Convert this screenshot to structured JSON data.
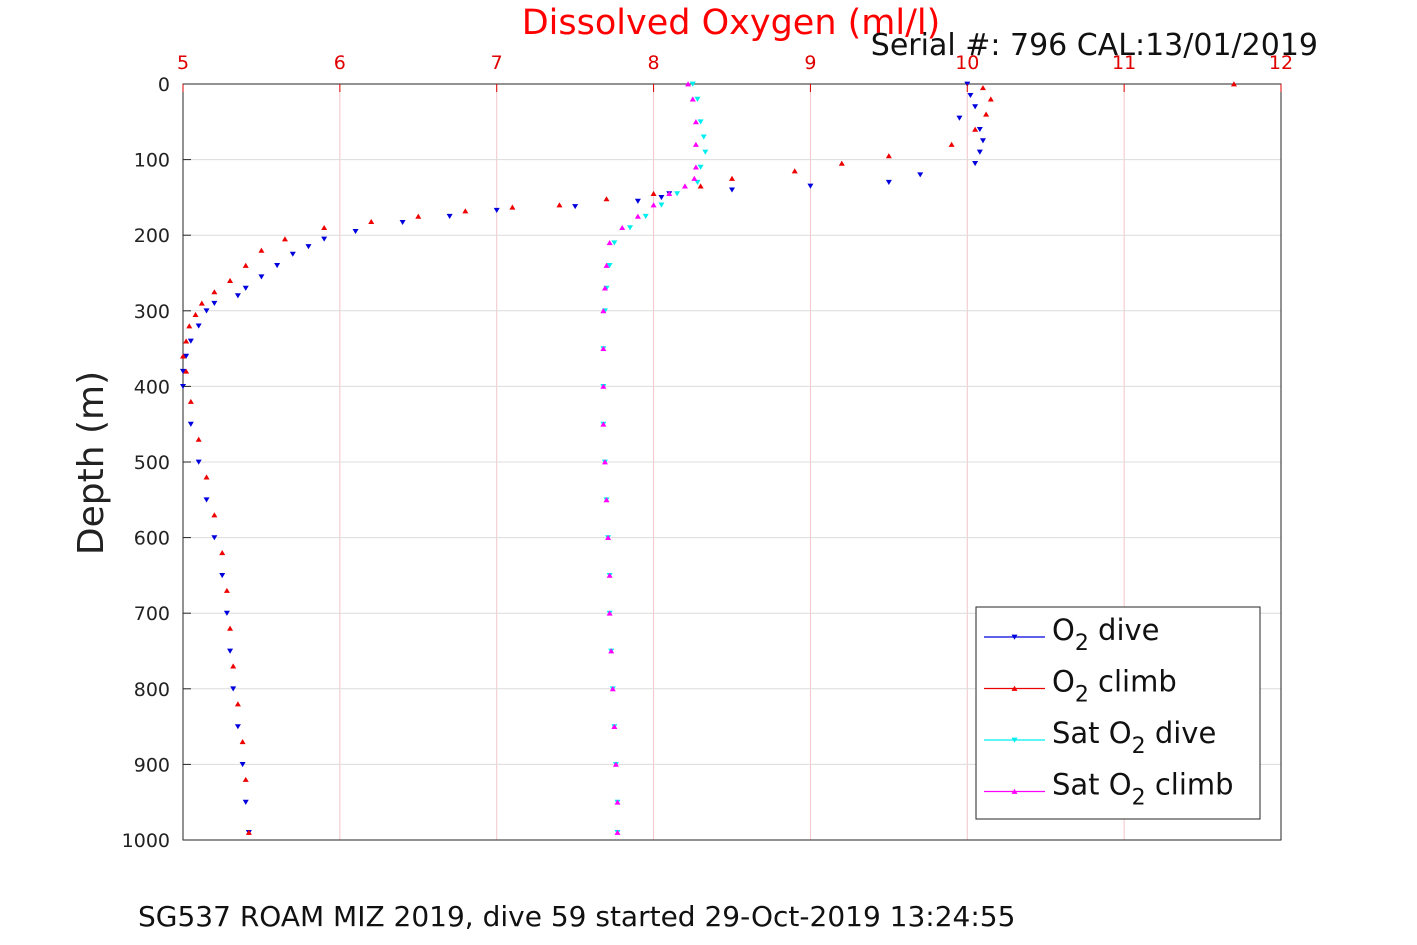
{
  "chart_data": {
    "type": "scatter",
    "title": "Dissolved Oxygen (ml/l)",
    "subtitle": "Serial #: 796  CAL:13/01/2019",
    "ylabel": "Depth (m)",
    "caption": "SG537 ROAM MIZ 2019, dive 59 started 29-Oct-2019 13:24:55",
    "xlim": [
      5,
      12
    ],
    "ylim": [
      0,
      1000
    ],
    "y_reversed": true,
    "x_axis_position": "top",
    "x_ticks": [
      "5",
      "6",
      "7",
      "8",
      "9",
      "10",
      "11",
      "12"
    ],
    "y_ticks": [
      "0",
      "100",
      "200",
      "300",
      "400",
      "500",
      "600",
      "700",
      "800",
      "900",
      "1000"
    ],
    "grid": true,
    "legend_position": "bottom-right",
    "series": [
      {
        "id": "o2_dive",
        "label": {
          "main": "O",
          "sub": "2",
          "rest": " dive"
        },
        "color": "#0000dd",
        "marker": "triangle-down",
        "points": [
          [
            10.0,
            0
          ],
          [
            10.02,
            15
          ],
          [
            10.05,
            30
          ],
          [
            9.95,
            45
          ],
          [
            10.08,
            60
          ],
          [
            10.1,
            75
          ],
          [
            10.08,
            90
          ],
          [
            10.05,
            105
          ],
          [
            9.7,
            120
          ],
          [
            9.5,
            130
          ],
          [
            9.0,
            135
          ],
          [
            8.5,
            140
          ],
          [
            8.1,
            145
          ],
          [
            8.05,
            150
          ],
          [
            7.9,
            155
          ],
          [
            7.5,
            162
          ],
          [
            7.0,
            167
          ],
          [
            6.7,
            175
          ],
          [
            6.4,
            183
          ],
          [
            6.1,
            195
          ],
          [
            5.9,
            205
          ],
          [
            5.8,
            215
          ],
          [
            5.7,
            225
          ],
          [
            5.6,
            240
          ],
          [
            5.5,
            255
          ],
          [
            5.4,
            270
          ],
          [
            5.35,
            280
          ],
          [
            5.2,
            290
          ],
          [
            5.15,
            300
          ],
          [
            5.1,
            320
          ],
          [
            5.05,
            340
          ],
          [
            5.02,
            360
          ],
          [
            5.0,
            380
          ],
          [
            5.0,
            400
          ],
          [
            5.05,
            450
          ],
          [
            5.1,
            500
          ],
          [
            5.15,
            550
          ],
          [
            5.2,
            600
          ],
          [
            5.25,
            650
          ],
          [
            5.28,
            700
          ],
          [
            5.3,
            750
          ],
          [
            5.32,
            800
          ],
          [
            5.35,
            850
          ],
          [
            5.38,
            900
          ],
          [
            5.4,
            950
          ],
          [
            5.42,
            990
          ]
        ]
      },
      {
        "id": "o2_climb",
        "label": {
          "main": "O",
          "sub": "2",
          "rest": " climb"
        },
        "color": "#ee0000",
        "marker": "triangle-up",
        "points": [
          [
            11.7,
            0
          ],
          [
            10.1,
            5
          ],
          [
            10.15,
            20
          ],
          [
            10.12,
            40
          ],
          [
            10.05,
            60
          ],
          [
            9.9,
            80
          ],
          [
            9.5,
            95
          ],
          [
            9.2,
            105
          ],
          [
            8.9,
            115
          ],
          [
            8.5,
            125
          ],
          [
            8.3,
            135
          ],
          [
            8.0,
            145
          ],
          [
            7.7,
            152
          ],
          [
            7.4,
            160
          ],
          [
            7.1,
            163
          ],
          [
            6.8,
            168
          ],
          [
            6.5,
            175
          ],
          [
            6.2,
            182
          ],
          [
            5.9,
            190
          ],
          [
            5.65,
            205
          ],
          [
            5.5,
            220
          ],
          [
            5.4,
            240
          ],
          [
            5.3,
            260
          ],
          [
            5.2,
            275
          ],
          [
            5.12,
            290
          ],
          [
            5.08,
            305
          ],
          [
            5.04,
            320
          ],
          [
            5.02,
            340
          ],
          [
            5.0,
            360
          ],
          [
            5.02,
            380
          ],
          [
            5.05,
            420
          ],
          [
            5.1,
            470
          ],
          [
            5.15,
            520
          ],
          [
            5.2,
            570
          ],
          [
            5.25,
            620
          ],
          [
            5.28,
            670
          ],
          [
            5.3,
            720
          ],
          [
            5.32,
            770
          ],
          [
            5.35,
            820
          ],
          [
            5.38,
            870
          ],
          [
            5.4,
            920
          ],
          [
            5.42,
            990
          ]
        ]
      },
      {
        "id": "sat_o2_dive",
        "label": {
          "main": "Sat O",
          "sub": "2",
          "rest": " dive"
        },
        "color": "#00eeee",
        "marker": "triangle-down",
        "points": [
          [
            8.25,
            0
          ],
          [
            8.28,
            20
          ],
          [
            8.3,
            50
          ],
          [
            8.32,
            70
          ],
          [
            8.33,
            90
          ],
          [
            8.3,
            110
          ],
          [
            8.28,
            130
          ],
          [
            8.15,
            145
          ],
          [
            8.05,
            160
          ],
          [
            7.95,
            175
          ],
          [
            7.85,
            190
          ],
          [
            7.75,
            210
          ],
          [
            7.72,
            240
          ],
          [
            7.7,
            270
          ],
          [
            7.69,
            300
          ],
          [
            7.68,
            350
          ],
          [
            7.68,
            400
          ],
          [
            7.68,
            450
          ],
          [
            7.69,
            500
          ],
          [
            7.7,
            550
          ],
          [
            7.71,
            600
          ],
          [
            7.72,
            650
          ],
          [
            7.72,
            700
          ],
          [
            7.73,
            750
          ],
          [
            7.74,
            800
          ],
          [
            7.75,
            850
          ],
          [
            7.76,
            900
          ],
          [
            7.77,
            950
          ],
          [
            7.77,
            990
          ]
        ]
      },
      {
        "id": "sat_o2_climb",
        "label": {
          "main": "Sat O",
          "sub": "2",
          "rest": " climb"
        },
        "color": "#ff00ff",
        "marker": "triangle-up",
        "points": [
          [
            8.22,
            0
          ],
          [
            8.25,
            20
          ],
          [
            8.27,
            50
          ],
          [
            8.27,
            80
          ],
          [
            8.27,
            110
          ],
          [
            8.26,
            125
          ],
          [
            8.2,
            135
          ],
          [
            8.1,
            145
          ],
          [
            8.0,
            160
          ],
          [
            7.9,
            175
          ],
          [
            7.8,
            190
          ],
          [
            7.72,
            210
          ],
          [
            7.7,
            240
          ],
          [
            7.69,
            270
          ],
          [
            7.68,
            300
          ],
          [
            7.68,
            350
          ],
          [
            7.68,
            400
          ],
          [
            7.68,
            450
          ],
          [
            7.69,
            500
          ],
          [
            7.7,
            550
          ],
          [
            7.71,
            600
          ],
          [
            7.72,
            650
          ],
          [
            7.72,
            700
          ],
          [
            7.73,
            750
          ],
          [
            7.74,
            800
          ],
          [
            7.75,
            850
          ],
          [
            7.76,
            900
          ],
          [
            7.77,
            950
          ],
          [
            7.77,
            990
          ]
        ]
      }
    ]
  }
}
